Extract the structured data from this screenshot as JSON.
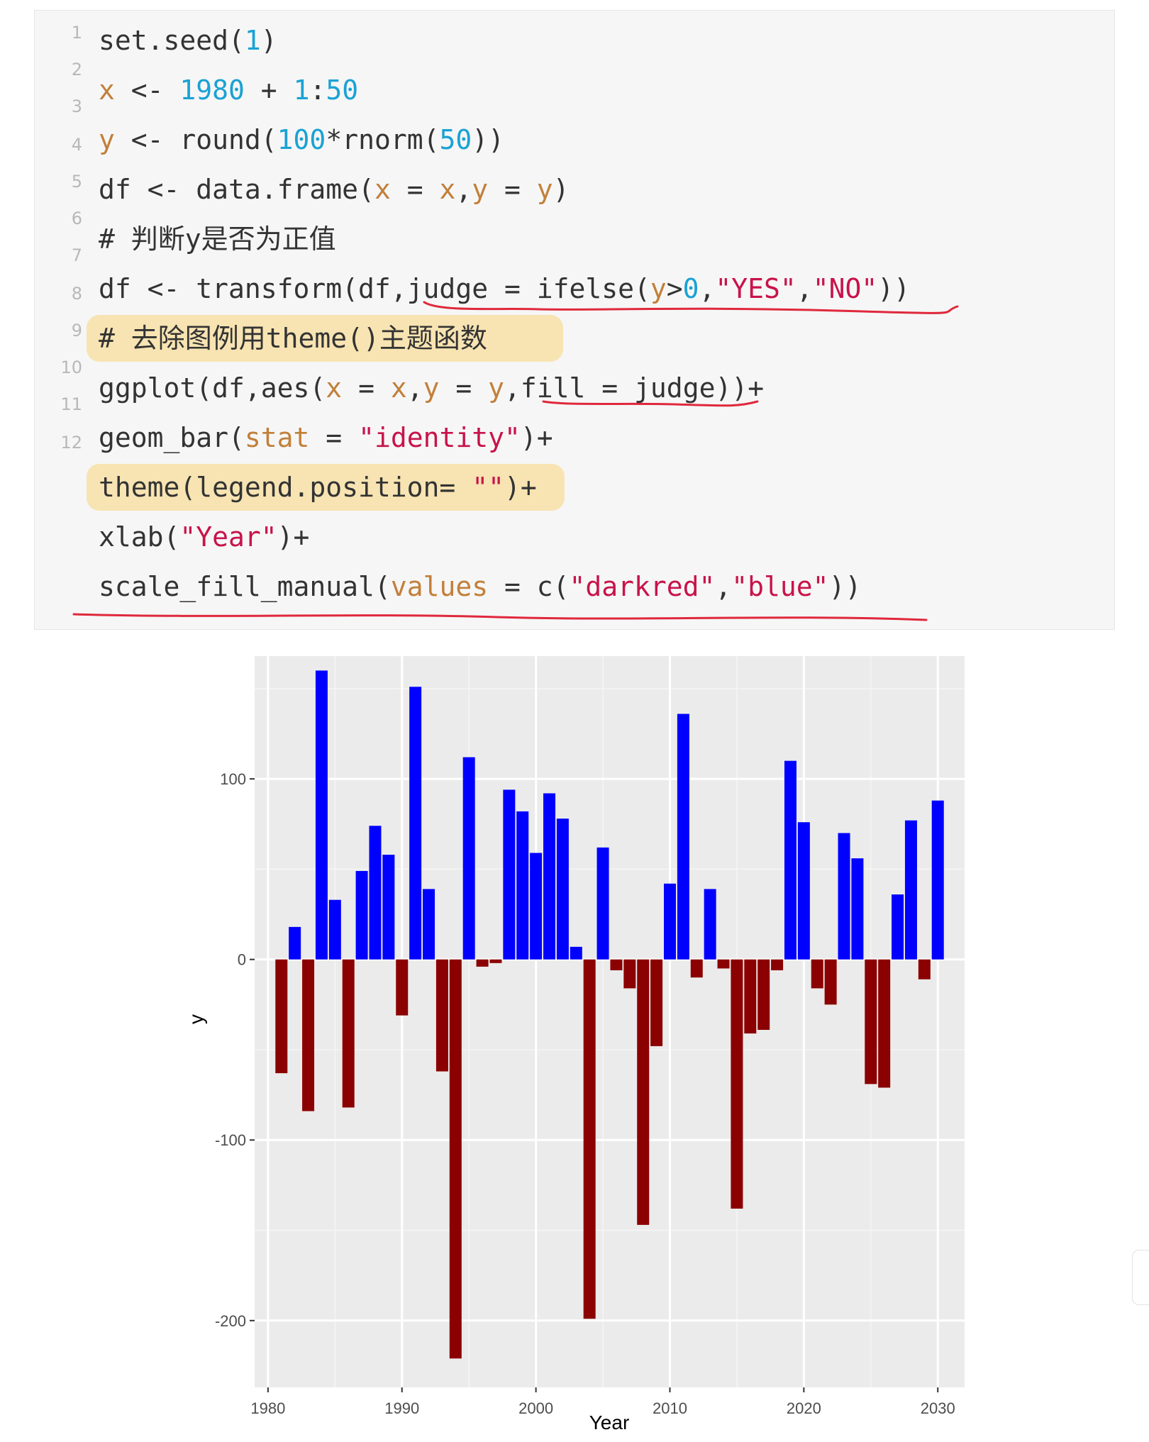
{
  "code": {
    "line_numbers": [
      "1",
      "2",
      "3",
      "4",
      "5",
      "6",
      "7",
      "8",
      "9",
      "10",
      "11",
      "12"
    ],
    "lines": [
      [
        {
          "t": "set.seed("
        },
        {
          "t": "1",
          "c": "num"
        },
        {
          "t": ")"
        }
      ],
      [
        {
          "t": "x",
          "c": "arg"
        },
        {
          "t": " <- "
        },
        {
          "t": "1980",
          "c": "num"
        },
        {
          "t": " + "
        },
        {
          "t": "1",
          "c": "num"
        },
        {
          "t": ":"
        },
        {
          "t": "50",
          "c": "num"
        }
      ],
      [
        {
          "t": "y",
          "c": "arg"
        },
        {
          "t": " <- round("
        },
        {
          "t": "100",
          "c": "num"
        },
        {
          "t": "*rnorm("
        },
        {
          "t": "50",
          "c": "num"
        },
        {
          "t": "))"
        }
      ],
      [
        {
          "t": "df <- data.frame("
        },
        {
          "t": "x",
          "c": "arg"
        },
        {
          "t": " = "
        },
        {
          "t": "x",
          "c": "arg"
        },
        {
          "t": ","
        },
        {
          "t": "y",
          "c": "arg"
        },
        {
          "t": " = "
        },
        {
          "t": "y",
          "c": "arg"
        },
        {
          "t": ")"
        }
      ],
      [
        {
          "t": "# 判断y是否为正值"
        }
      ],
      [
        {
          "t": "df <- transform(df,judge = ifelse("
        },
        {
          "t": "y",
          "c": "arg"
        },
        {
          "t": ">"
        },
        {
          "t": "0",
          "c": "num"
        },
        {
          "t": ","
        },
        {
          "t": "\"YES\"",
          "c": "str"
        },
        {
          "t": ","
        },
        {
          "t": "\"NO\"",
          "c": "str"
        },
        {
          "t": "))"
        }
      ],
      [
        {
          "t": "# 去除图例用theme()主题函数"
        }
      ],
      [
        {
          "t": "ggplot(df,aes("
        },
        {
          "t": "x",
          "c": "arg"
        },
        {
          "t": " = "
        },
        {
          "t": "x",
          "c": "arg"
        },
        {
          "t": ","
        },
        {
          "t": "y",
          "c": "arg"
        },
        {
          "t": " = "
        },
        {
          "t": "y",
          "c": "arg"
        },
        {
          "t": ",fill = judge))+"
        }
      ],
      [
        {
          "t": "geom_bar("
        },
        {
          "t": "stat",
          "c": "arg"
        },
        {
          "t": " = "
        },
        {
          "t": "\"identity\"",
          "c": "str"
        },
        {
          "t": ")+"
        }
      ],
      [
        {
          "t": "theme(legend.position= "
        },
        {
          "t": "\"\"",
          "c": "str"
        },
        {
          "t": ")+"
        }
      ],
      [
        {
          "t": "xlab("
        },
        {
          "t": "\"Year\"",
          "c": "str"
        },
        {
          "t": ")+"
        }
      ],
      [
        {
          "t": "scale_fill_manual("
        },
        {
          "t": "values",
          "c": "arg"
        },
        {
          "t": " = c("
        },
        {
          "t": "\"darkred\"",
          "c": "str"
        },
        {
          "t": ","
        },
        {
          "t": "\"blue\"",
          "c": "str"
        },
        {
          "t": "))"
        }
      ]
    ]
  },
  "colors": {
    "positive": "#0000ff",
    "negative": "#8b0000",
    "panel": "#ebebeb",
    "annotation_red": "#e0283c",
    "highlight": "#f7d57a"
  },
  "chart_data": {
    "type": "bar",
    "xlabel": "Year",
    "ylabel": "y",
    "xlim": [
      1979,
      2032
    ],
    "ylim": [
      -237,
      168
    ],
    "x_ticks": [
      1980,
      1990,
      2000,
      2010,
      2020,
      2030
    ],
    "y_ticks": [
      -200,
      -100,
      0,
      100
    ],
    "grid": true,
    "legend": "none",
    "fill_rule": "judge: y > 0 → YES (blue), otherwise NO (darkred)",
    "x": [
      1981,
      1982,
      1983,
      1984,
      1985,
      1986,
      1987,
      1988,
      1989,
      1990,
      1991,
      1992,
      1993,
      1994,
      1995,
      1996,
      1997,
      1998,
      1999,
      2000,
      2001,
      2002,
      2003,
      2004,
      2005,
      2006,
      2007,
      2008,
      2009,
      2010,
      2011,
      2012,
      2013,
      2014,
      2015,
      2016,
      2017,
      2018,
      2019,
      2020,
      2021,
      2022,
      2023,
      2024,
      2025,
      2026,
      2027,
      2028,
      2029,
      2030
    ],
    "y": [
      -63,
      18,
      -84,
      160,
      33,
      -82,
      49,
      74,
      58,
      -31,
      151,
      39,
      -62,
      -221,
      112,
      -4,
      -2,
      94,
      82,
      59,
      92,
      78,
      7,
      -199,
      62,
      -6,
      -16,
      -147,
      -48,
      42,
      136,
      -10,
      39,
      -5,
      -138,
      -41,
      -39,
      -6,
      110,
      76,
      -16,
      -25,
      70,
      56,
      -69,
      -71,
      36,
      77,
      -11,
      88
    ]
  }
}
